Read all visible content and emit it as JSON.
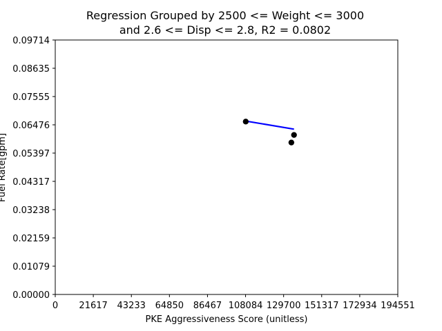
{
  "chart_data": {
    "type": "scatter",
    "title_line1": "Regression Grouped by 2500 <= Weight <= 3000",
    "title_line2": "and 2.6 <= Disp <= 2.8, R2 = 0.0802",
    "xlabel": "PKE Aggressiveness Score (unitless)",
    "ylabel": "Fuel Rate[gpm]",
    "xlim": [
      0,
      194551
    ],
    "ylim": [
      0,
      0.09714
    ],
    "xticks": [
      "0",
      "21617",
      "43233",
      "64850",
      "86467",
      "108084",
      "129700",
      "151317",
      "172934",
      "194551"
    ],
    "yticks": [
      "0.00000",
      "0.01079",
      "0.02159",
      "0.03238",
      "0.04317",
      "0.05397",
      "0.06476",
      "0.07555",
      "0.08635",
      "0.09714"
    ],
    "grid": false,
    "points": [
      {
        "x": 108200,
        "y": 0.066
      },
      {
        "x": 135600,
        "y": 0.0609
      },
      {
        "x": 134100,
        "y": 0.058
      }
    ],
    "regression_line": {
      "x": [
        108200,
        135600
      ],
      "y": [
        0.0662,
        0.0631
      ]
    },
    "colors": {
      "points": "#000000",
      "line": "#0000ff"
    }
  }
}
